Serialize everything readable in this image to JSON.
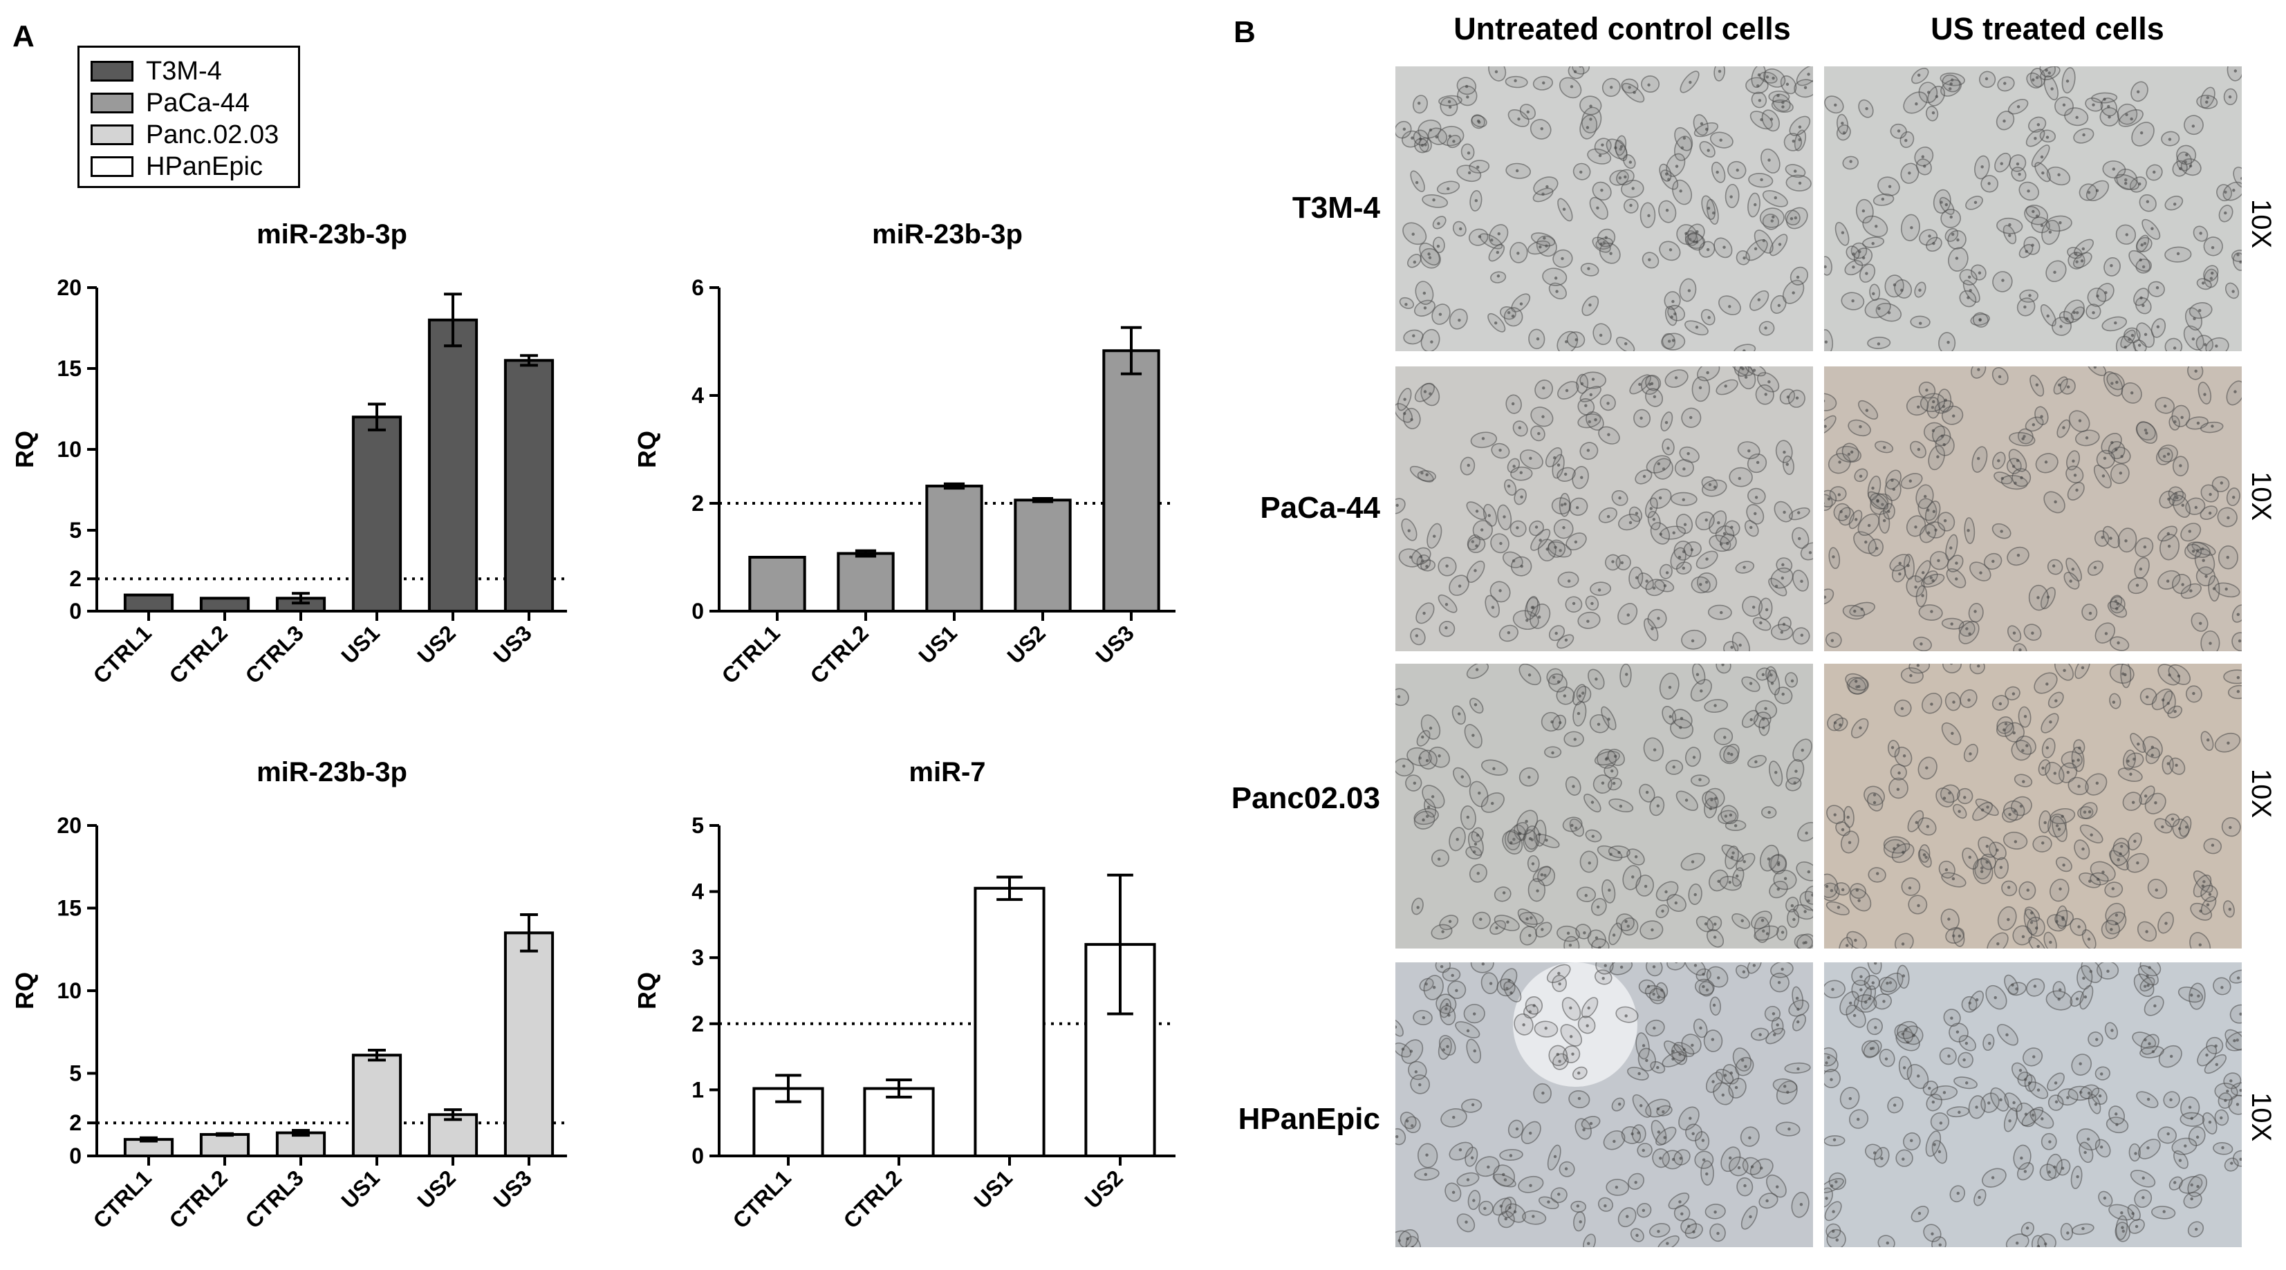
{
  "panels": {
    "a": "A",
    "b": "B"
  },
  "legend": [
    {
      "label": "T3M-4",
      "color": "#595959"
    },
    {
      "label": "PaCa-44",
      "color": "#9a9a9a"
    },
    {
      "label": "Panc.02.03",
      "color": "#d4d4d4"
    },
    {
      "label": "HPanEpic",
      "color": "#ffffff"
    }
  ],
  "chart_data": [
    {
      "type": "bar",
      "title": "miR-23b-3p",
      "ylabel": "RQ",
      "ylim": [
        0,
        20
      ],
      "yticks": [
        0,
        2,
        5,
        10,
        15,
        20
      ],
      "threshold": 2,
      "categories": [
        "CTRL1",
        "CTRL2",
        "CTRL3",
        "US1",
        "US2",
        "US3"
      ],
      "series": [
        {
          "name": "T3M-4",
          "color": "#595959",
          "values": [
            1.0,
            0.8,
            0.8,
            12.0,
            18.0,
            15.5
          ],
          "errors": [
            0.0,
            0.0,
            0.3,
            0.8,
            1.6,
            0.3
          ]
        }
      ]
    },
    {
      "type": "bar",
      "title": "miR-23b-3p",
      "ylabel": "RQ",
      "ylim": [
        0,
        6
      ],
      "yticks": [
        0,
        2,
        4,
        6
      ],
      "threshold": 2,
      "categories": [
        "CTRL1",
        "CTRL2",
        "US1",
        "US2",
        "US3"
      ],
      "series": [
        {
          "name": "PaCa-44",
          "color": "#9a9a9a",
          "values": [
            1.0,
            1.07,
            2.32,
            2.06,
            4.83
          ],
          "errors": [
            0.0,
            0.05,
            0.04,
            0.03,
            0.43
          ]
        }
      ]
    },
    {
      "type": "bar",
      "title": "miR-23b-3p",
      "ylabel": "RQ",
      "ylim": [
        0,
        20
      ],
      "yticks": [
        0,
        2,
        5,
        10,
        15,
        20
      ],
      "threshold": 2,
      "categories": [
        "CTRL1",
        "CTRL2",
        "CTRL3",
        "US1",
        "US2",
        "US3"
      ],
      "series": [
        {
          "name": "Panc.02.03",
          "color": "#d4d4d4",
          "values": [
            1.0,
            1.3,
            1.4,
            6.1,
            2.5,
            13.5
          ],
          "errors": [
            0.1,
            0.05,
            0.15,
            0.3,
            0.3,
            1.1
          ]
        }
      ]
    },
    {
      "type": "bar",
      "title": "miR-7",
      "ylabel": "RQ",
      "ylim": [
        0,
        5
      ],
      "yticks": [
        0,
        1,
        2,
        3,
        4,
        5
      ],
      "threshold": 2,
      "categories": [
        "CTRL1",
        "CTRL2",
        "US1",
        "US2"
      ],
      "series": [
        {
          "name": "HPanEpic",
          "color": "#ffffff",
          "values": [
            1.02,
            1.02,
            4.05,
            3.2
          ],
          "errors": [
            0.2,
            0.13,
            0.17,
            1.05
          ]
        }
      ]
    }
  ],
  "micrographs": {
    "columns": [
      "Untreated control cells",
      "US treated cells"
    ],
    "rows": [
      {
        "label": "T3M-4",
        "magnification": "10X",
        "tints": [
          "#cfd0cf",
          "#cdcfcd"
        ]
      },
      {
        "label": "PaCa-44",
        "magnification": "10X",
        "tints": [
          "#cbcac7",
          "#c9bfb5"
        ]
      },
      {
        "label": "Panc02.03",
        "magnification": "10X",
        "tints": [
          "#c5c6c3",
          "#cbbfb2"
        ]
      },
      {
        "label": "HPanEpic",
        "magnification": "10X",
        "tints": [
          "#c4c8ce",
          "#c6ccd2"
        ]
      }
    ]
  }
}
